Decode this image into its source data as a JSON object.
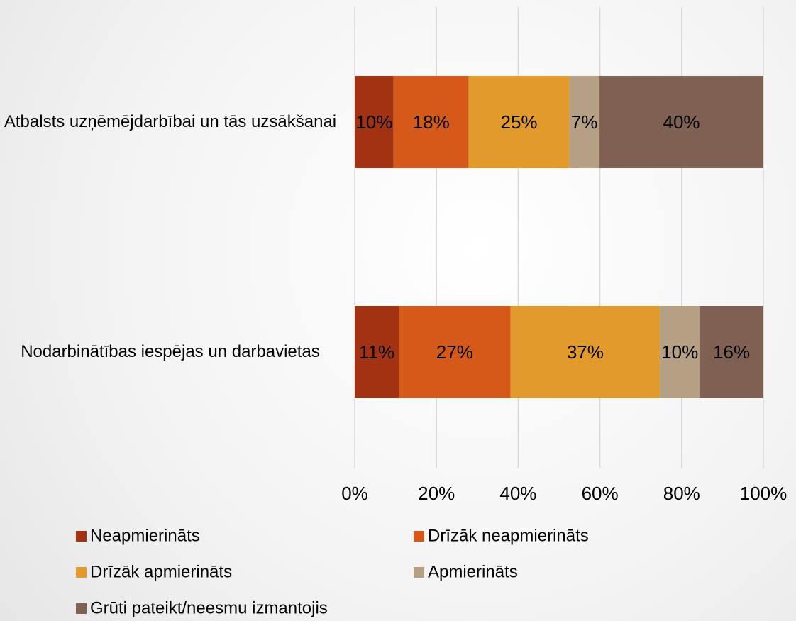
{
  "chart_data": {
    "type": "stacked_barh",
    "categories": [
      "Atbalsts uzņēmējdarbībai un tās uzsākšanai",
      "Nodarbinātības iespējas un darbavietas"
    ],
    "series": [
      {
        "name": "Neapmierināts",
        "color": "#a23212",
        "values": [
          9.5,
          10.8
        ],
        "value_labels": [
          "10%",
          "11%"
        ]
      },
      {
        "name": "Drīzāk neapmierināts",
        "color": "#d55a1a",
        "values": [
          18.4,
          27.3
        ],
        "value_labels": [
          "18%",
          "27%"
        ]
      },
      {
        "name": "Drīzāk apmierināts",
        "color": "#e29a2a",
        "values": [
          24.6,
          36.6
        ],
        "value_labels": [
          "25%",
          "37%"
        ]
      },
      {
        "name": "Apmierināts",
        "color": "#b5a083",
        "values": [
          7.4,
          9.7
        ],
        "value_labels": [
          "7%",
          "10%"
        ]
      },
      {
        "name": "Grūti pateikt/neesmu izmantojis",
        "color": "#7f6052",
        "values": [
          40.1,
          15.6
        ],
        "value_labels": [
          "40%",
          "16%"
        ]
      }
    ],
    "xlim": [
      0,
      100
    ],
    "xticks": [
      {
        "value": 0,
        "label": "0%"
      },
      {
        "value": 20,
        "label": "20%"
      },
      {
        "value": 40,
        "label": "40%"
      },
      {
        "value": 60,
        "label": "60%"
      },
      {
        "value": 80,
        "label": "80%"
      },
      {
        "value": 100,
        "label": "100%"
      }
    ],
    "grid": true,
    "legend": "bottom"
  }
}
